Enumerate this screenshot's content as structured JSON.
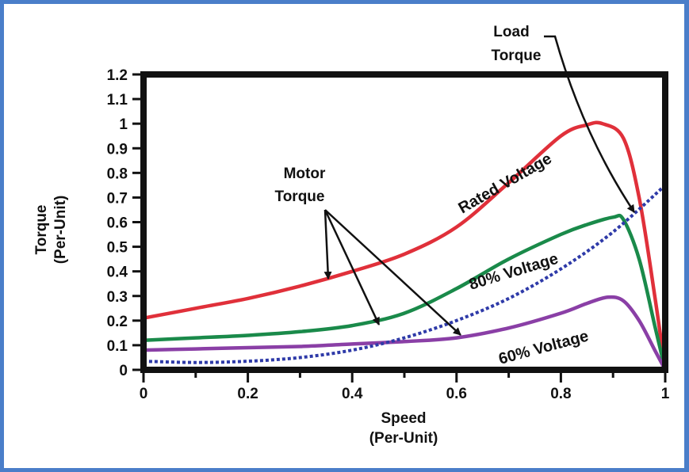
{
  "chart_data": {
    "type": "line",
    "title": "",
    "xlabel": [
      "Speed",
      "(Per-Unit)"
    ],
    "ylabel": [
      "Torque",
      "(Per-Unit)"
    ],
    "xlim": [
      0,
      1
    ],
    "ylim": [
      0,
      1.2
    ],
    "xticks": [
      0,
      0.2,
      0.4,
      0.6,
      0.8,
      1
    ],
    "xtick_labels": [
      "0",
      "0.2",
      "0.4",
      "0.6",
      "0.8",
      "1"
    ],
    "yticks": [
      0,
      0.1,
      0.2,
      0.3,
      0.4,
      0.5,
      0.6,
      0.7,
      0.8,
      0.9,
      1,
      1.1,
      1.2
    ],
    "ytick_labels": [
      "0",
      "0.1",
      "0.2",
      "0.3",
      "0.4",
      "0.5",
      "0.6",
      "0.7",
      "0.8",
      "0.9",
      "1",
      "1.1",
      "1.2"
    ],
    "grid": false,
    "series": [
      {
        "name": "Rated Voltage",
        "color": "#e0303a",
        "style": "solid",
        "x": [
          0,
          0.1,
          0.2,
          0.3,
          0.4,
          0.5,
          0.6,
          0.7,
          0.8,
          0.85,
          0.88,
          0.92,
          0.95,
          0.98,
          1.0
        ],
        "y": [
          0.21,
          0.25,
          0.29,
          0.34,
          0.4,
          0.47,
          0.58,
          0.76,
          0.95,
          0.995,
          1.0,
          0.94,
          0.7,
          0.3,
          0.0
        ]
      },
      {
        "name": "80% Voltage",
        "color": "#1a8a4a",
        "style": "solid",
        "x": [
          0,
          0.1,
          0.2,
          0.3,
          0.4,
          0.5,
          0.6,
          0.7,
          0.8,
          0.85,
          0.9,
          0.92,
          0.95,
          0.98,
          1.0
        ],
        "y": [
          0.12,
          0.13,
          0.14,
          0.155,
          0.18,
          0.23,
          0.33,
          0.45,
          0.55,
          0.59,
          0.62,
          0.61,
          0.45,
          0.18,
          0.0
        ]
      },
      {
        "name": "60% Voltage",
        "color": "#8a3fa6",
        "style": "solid",
        "x": [
          0,
          0.1,
          0.2,
          0.3,
          0.4,
          0.5,
          0.6,
          0.7,
          0.8,
          0.85,
          0.89,
          0.92,
          0.95,
          0.98,
          1.0
        ],
        "y": [
          0.08,
          0.085,
          0.09,
          0.095,
          0.105,
          0.115,
          0.13,
          0.17,
          0.23,
          0.27,
          0.295,
          0.28,
          0.2,
          0.08,
          0.0
        ]
      },
      {
        "name": "Load Torque",
        "color": "#2e3aa8",
        "style": "dotted",
        "x": [
          0,
          0.1,
          0.2,
          0.3,
          0.4,
          0.5,
          0.6,
          0.7,
          0.8,
          0.9,
          1.0
        ],
        "y": [
          0.035,
          0.03,
          0.035,
          0.05,
          0.08,
          0.13,
          0.2,
          0.29,
          0.41,
          0.56,
          0.75
        ]
      }
    ],
    "annotations": {
      "load_torque": [
        "Load",
        "Torque"
      ],
      "motor_torque": [
        "Motor",
        "Torque"
      ],
      "rated_voltage": "Rated Voltage",
      "voltage_80": "80% Voltage",
      "voltage_60": "60% Voltage"
    }
  }
}
